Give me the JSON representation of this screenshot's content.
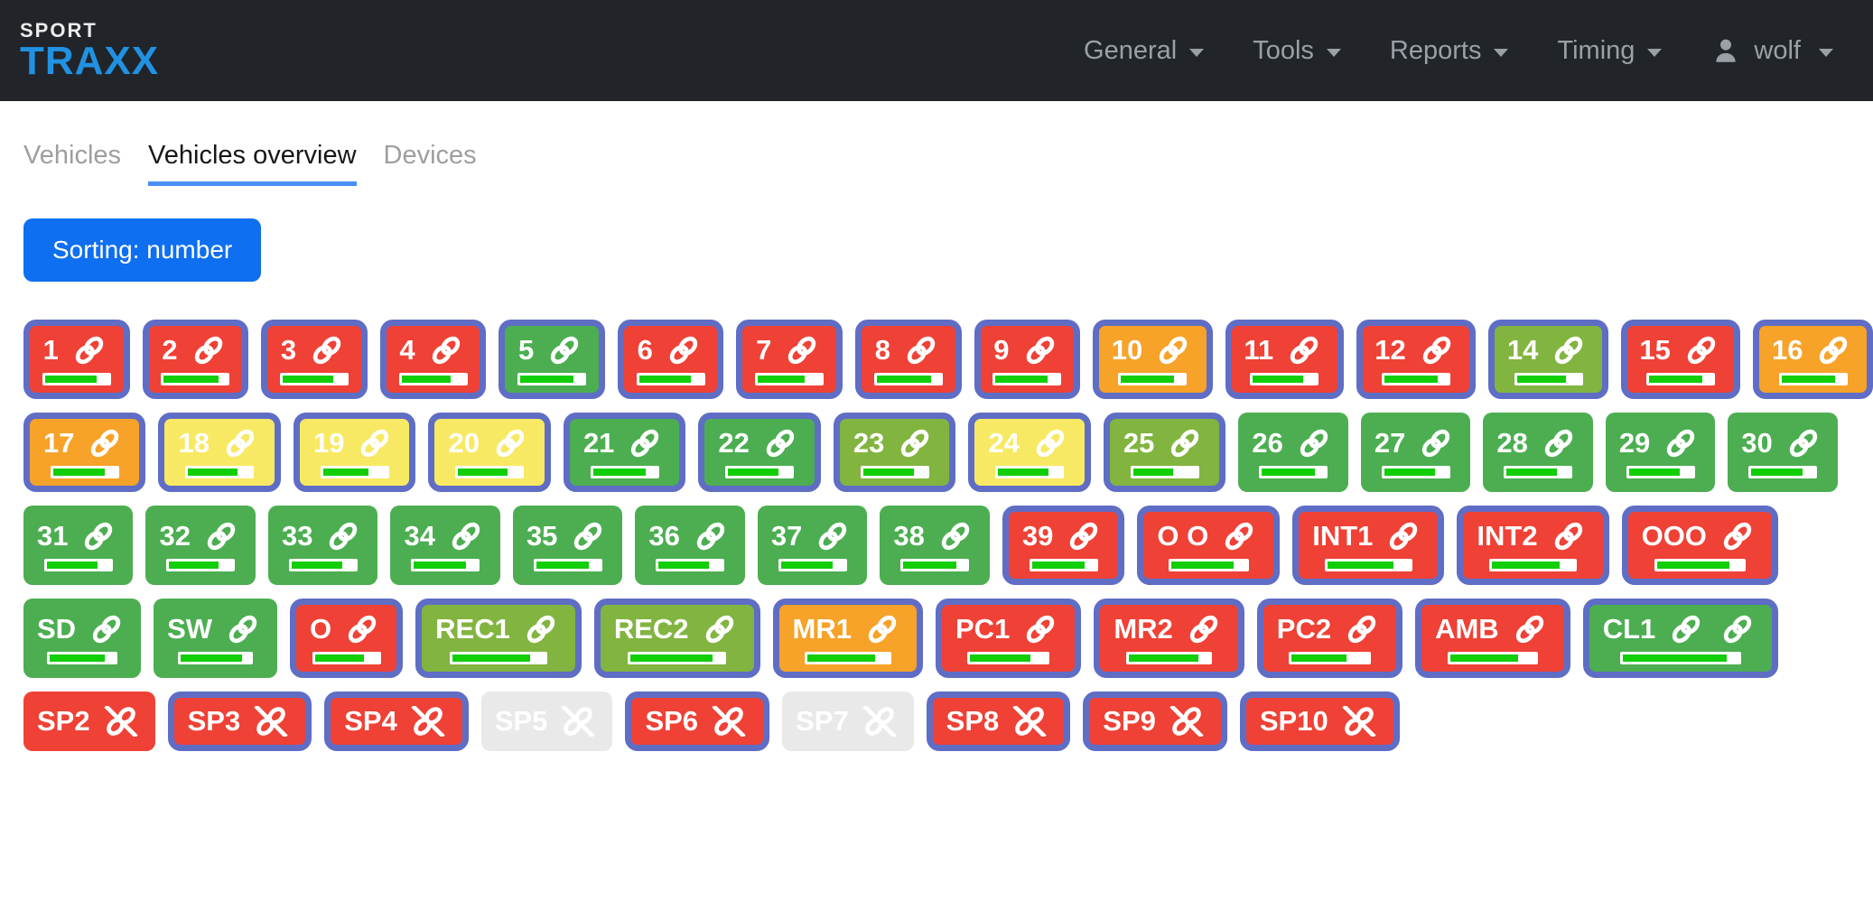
{
  "brand": {
    "top": "SPORT",
    "bottom": "TRAXX"
  },
  "navbar": {
    "items": [
      {
        "label": "General"
      },
      {
        "label": "Tools"
      },
      {
        "label": "Reports"
      },
      {
        "label": "Timing"
      }
    ],
    "user": "wolf"
  },
  "tabs": [
    {
      "label": "Vehicles",
      "active": false
    },
    {
      "label": "Vehicles overview",
      "active": true
    },
    {
      "label": "Devices",
      "active": false
    }
  ],
  "sorting_button": "Sorting: number",
  "palette": {
    "red": "#ef4136",
    "green": "#4cae51",
    "olive": "#82b440",
    "orange": "#f7a229",
    "yellow": "#f8e964",
    "gray": "#e9e9e9",
    "border": "#5f6dc5",
    "signal": "#12ce06",
    "accent_blue": "#0e6ff0",
    "tab_underline": "#4a8ef8",
    "navbar_bg": "#212529",
    "brand_blue": "#2191e2"
  },
  "tiles": {
    "rows": [
      [
        {
          "label": "1",
          "color": "red",
          "bordered": true,
          "state": "linked",
          "progress": 82
        },
        {
          "label": "2",
          "color": "red",
          "bordered": true,
          "state": "linked",
          "progress": 86
        },
        {
          "label": "3",
          "color": "red",
          "bordered": true,
          "state": "linked",
          "progress": 80
        },
        {
          "label": "4",
          "color": "red",
          "bordered": true,
          "state": "linked",
          "progress": 78
        },
        {
          "label": "5",
          "color": "green",
          "bordered": true,
          "state": "linked",
          "progress": 84
        },
        {
          "label": "6",
          "color": "red",
          "bordered": true,
          "state": "linked",
          "progress": 82
        },
        {
          "label": "7",
          "color": "red",
          "bordered": true,
          "state": "linked",
          "progress": 74
        },
        {
          "label": "8",
          "color": "red",
          "bordered": true,
          "state": "linked",
          "progress": 86
        },
        {
          "label": "9",
          "color": "red",
          "bordered": true,
          "state": "linked",
          "progress": 82
        },
        {
          "label": "10",
          "color": "orange",
          "bordered": true,
          "state": "linked",
          "progress": 84
        },
        {
          "label": "11",
          "color": "red",
          "bordered": true,
          "state": "linked",
          "progress": 80
        },
        {
          "label": "12",
          "color": "red",
          "bordered": true,
          "state": "linked",
          "progress": 84
        },
        {
          "label": "14",
          "color": "olive",
          "bordered": true,
          "state": "linked",
          "progress": 78
        },
        {
          "label": "15",
          "color": "red",
          "bordered": true,
          "state": "linked",
          "progress": 84
        },
        {
          "label": "16",
          "color": "orange",
          "bordered": true,
          "state": "linked",
          "progress": 84
        }
      ],
      [
        {
          "label": "17",
          "color": "orange",
          "bordered": true,
          "state": "linked",
          "progress": 82
        },
        {
          "label": "18",
          "color": "yellow",
          "bordered": true,
          "state": "linked",
          "progress": 78
        },
        {
          "label": "19",
          "color": "yellow",
          "bordered": true,
          "state": "linked",
          "progress": 72
        },
        {
          "label": "20",
          "color": "yellow",
          "bordered": true,
          "state": "linked",
          "progress": 78
        },
        {
          "label": "21",
          "color": "green",
          "bordered": true,
          "state": "linked",
          "progress": 84
        },
        {
          "label": "22",
          "color": "green",
          "bordered": true,
          "state": "linked",
          "progress": 80
        },
        {
          "label": "23",
          "color": "olive",
          "bordered": true,
          "state": "linked",
          "progress": 80
        },
        {
          "label": "24",
          "color": "yellow",
          "bordered": true,
          "state": "linked",
          "progress": 80
        },
        {
          "label": "25",
          "color": "olive",
          "bordered": true,
          "state": "linked",
          "progress": 64
        },
        {
          "label": "26",
          "color": "green",
          "bordered": false,
          "state": "linked",
          "progress": 84
        },
        {
          "label": "27",
          "color": "green",
          "bordered": false,
          "state": "linked",
          "progress": 80
        },
        {
          "label": "28",
          "color": "green",
          "bordered": false,
          "state": "linked",
          "progress": 80
        },
        {
          "label": "29",
          "color": "green",
          "bordered": false,
          "state": "linked",
          "progress": 80
        },
        {
          "label": "30",
          "color": "green",
          "bordered": false,
          "state": "linked",
          "progress": 82
        }
      ],
      [
        {
          "label": "31",
          "color": "green",
          "bordered": false,
          "state": "linked",
          "progress": 80
        },
        {
          "label": "32",
          "color": "green",
          "bordered": false,
          "state": "linked",
          "progress": 78
        },
        {
          "label": "33",
          "color": "green",
          "bordered": false,
          "state": "linked",
          "progress": 80
        },
        {
          "label": "34",
          "color": "green",
          "bordered": false,
          "state": "linked",
          "progress": 82
        },
        {
          "label": "35",
          "color": "green",
          "bordered": false,
          "state": "linked",
          "progress": 84
        },
        {
          "label": "36",
          "color": "green",
          "bordered": false,
          "state": "linked",
          "progress": 80
        },
        {
          "label": "37",
          "color": "green",
          "bordered": false,
          "state": "linked",
          "progress": 82
        },
        {
          "label": "38",
          "color": "green",
          "bordered": false,
          "state": "linked",
          "progress": 84
        },
        {
          "label": "39",
          "color": "red",
          "bordered": true,
          "state": "linked",
          "progress": 84
        },
        {
          "label": "O O",
          "color": "red",
          "bordered": true,
          "state": "linked",
          "progress": 84
        },
        {
          "label": "INT1",
          "color": "red",
          "bordered": true,
          "state": "linked",
          "progress": 80
        },
        {
          "label": "INT2",
          "color": "red",
          "bordered": true,
          "state": "linked",
          "progress": 82
        },
        {
          "label": "OOO",
          "color": "red",
          "bordered": true,
          "state": "linked",
          "progress": 84
        }
      ],
      [
        {
          "label": "SD",
          "color": "green",
          "bordered": false,
          "state": "linked",
          "progress": 84
        },
        {
          "label": "SW",
          "color": "green",
          "bordered": false,
          "state": "linked",
          "progress": 88
        },
        {
          "label": "O",
          "color": "red",
          "bordered": true,
          "state": "linked",
          "progress": 78
        },
        {
          "label": "REC1",
          "color": "olive",
          "bordered": true,
          "state": "linked",
          "progress": 84
        },
        {
          "label": "REC2",
          "color": "olive",
          "bordered": true,
          "state": "linked",
          "progress": 88
        },
        {
          "label": "MR1",
          "color": "orange",
          "bordered": true,
          "state": "linked",
          "progress": 84
        },
        {
          "label": "PC1",
          "color": "red",
          "bordered": true,
          "state": "linked",
          "progress": 78
        },
        {
          "label": "MR2",
          "color": "red",
          "bordered": true,
          "state": "linked",
          "progress": 86
        },
        {
          "label": "PC2",
          "color": "red",
          "bordered": true,
          "state": "linked",
          "progress": 72
        },
        {
          "label": "AMB",
          "color": "red",
          "bordered": true,
          "state": "linked",
          "progress": 80
        },
        {
          "label": "CL1",
          "color": "green",
          "bordered": true,
          "state": "linked",
          "progress": 90,
          "links": 2
        }
      ],
      [
        {
          "label": "SP2",
          "color": "red",
          "bordered": false,
          "state": "broken",
          "progress": null
        },
        {
          "label": "SP3",
          "color": "red",
          "bordered": true,
          "state": "broken",
          "progress": null
        },
        {
          "label": "SP4",
          "color": "red",
          "bordered": true,
          "state": "broken",
          "progress": null
        },
        {
          "label": "SP5",
          "color": "gray",
          "bordered": false,
          "state": "broken",
          "progress": null
        },
        {
          "label": "SP6",
          "color": "red",
          "bordered": true,
          "state": "broken",
          "progress": null
        },
        {
          "label": "SP7",
          "color": "gray",
          "bordered": false,
          "state": "broken",
          "progress": null
        },
        {
          "label": "SP8",
          "color": "red",
          "bordered": true,
          "state": "broken",
          "progress": null
        },
        {
          "label": "SP9",
          "color": "red",
          "bordered": true,
          "state": "broken",
          "progress": null
        },
        {
          "label": "SP10",
          "color": "red",
          "bordered": true,
          "state": "broken",
          "progress": null
        }
      ]
    ]
  }
}
